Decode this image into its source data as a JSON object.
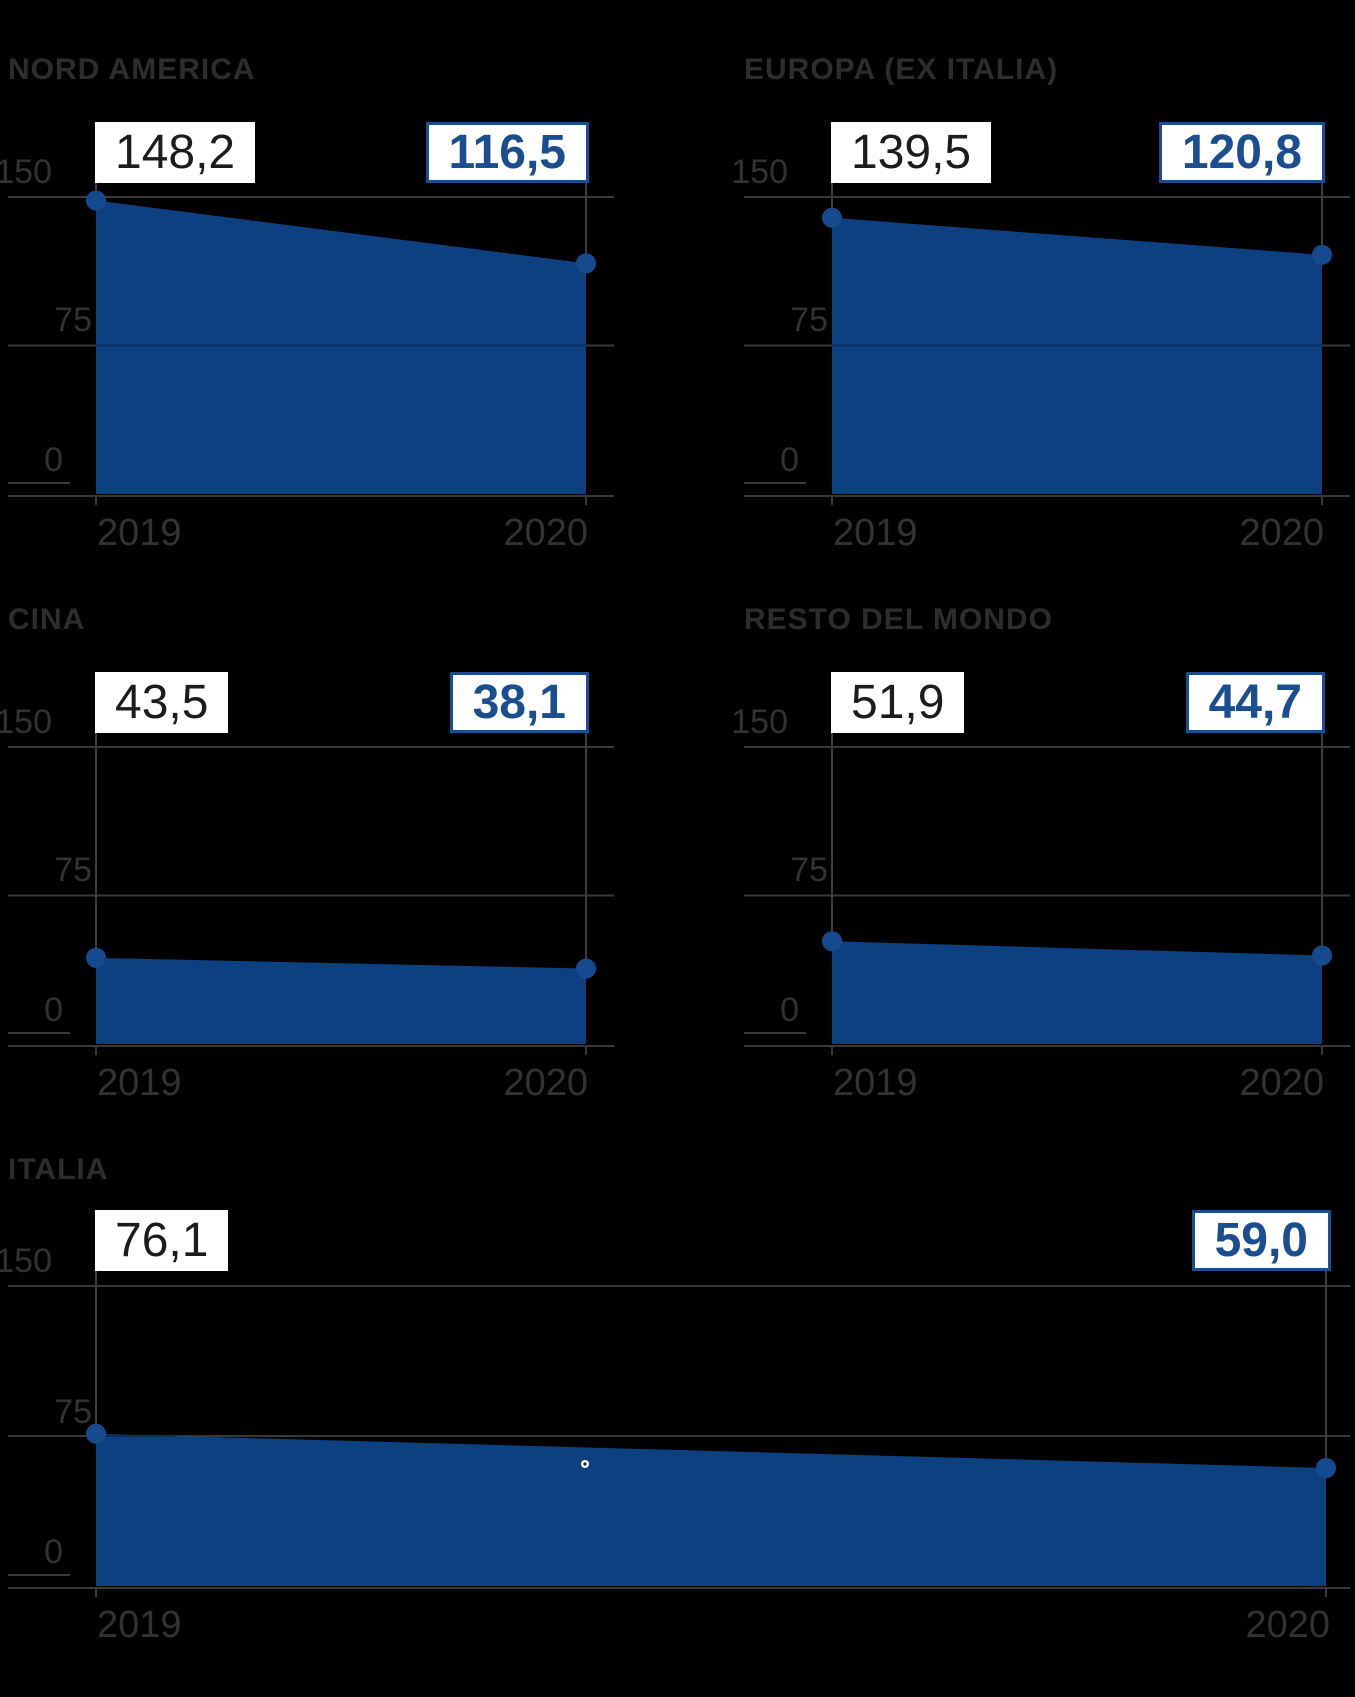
{
  "page": {
    "background": "#000000",
    "description": "Five small-multiple area charts comparing 2019 vs 2020 values by region"
  },
  "colors": {
    "background": "#000000",
    "area_fill": "#0d4080",
    "data_dot": "#164a8f",
    "grid_line": "#383838",
    "grid_line_on_fill": "#0a2e5f",
    "leader_line": "#3c3c3c",
    "title_text": "#2e2d2b",
    "axis_text": "#343231",
    "callout_bg": "#ffffff",
    "callout_prev_text": "#1c1c1a",
    "callout_curr_text": "#1b4e91",
    "callout_curr_border": "#1b4e91",
    "stray_marker_ring": "#ffffff",
    "stray_marker_core": "#0d2747"
  },
  "chart_data": [
    {
      "type": "area",
      "title": "NORD AMERICA",
      "x": [
        "2019",
        "2020"
      ],
      "values": [
        148.2,
        116.5
      ],
      "value_labels": [
        "148,2",
        "116,5"
      ],
      "ylim": [
        0,
        150
      ],
      "yticks": [
        150,
        75,
        0
      ],
      "ytick_labels": [
        "150",
        "75",
        "0"
      ],
      "grid": true,
      "legend": false
    },
    {
      "type": "area",
      "title": "EUROPA (EX ITALIA)",
      "x": [
        "2019",
        "2020"
      ],
      "values": [
        139.5,
        120.8
      ],
      "value_labels": [
        "139,5",
        "120,8"
      ],
      "ylim": [
        0,
        150
      ],
      "yticks": [
        150,
        75,
        0
      ],
      "ytick_labels": [
        "150",
        "75",
        "0"
      ],
      "grid": true,
      "legend": false
    },
    {
      "type": "area",
      "title": "CINA",
      "x": [
        "2019",
        "2020"
      ],
      "values": [
        43.5,
        38.1
      ],
      "value_labels": [
        "43,5",
        "38,1"
      ],
      "ylim": [
        0,
        150
      ],
      "yticks": [
        150,
        75,
        0
      ],
      "ytick_labels": [
        "150",
        "75",
        "0"
      ],
      "grid": true,
      "legend": false
    },
    {
      "type": "area",
      "title": "RESTO DEL MONDO",
      "x": [
        "2019",
        "2020"
      ],
      "values": [
        51.9,
        44.7
      ],
      "value_labels": [
        "51,9",
        "44,7"
      ],
      "ylim": [
        0,
        150
      ],
      "yticks": [
        150,
        75,
        0
      ],
      "ytick_labels": [
        "150",
        "75",
        "0"
      ],
      "grid": true,
      "legend": false
    },
    {
      "type": "area",
      "title": "ITALIA",
      "x": [
        "2019",
        "2020"
      ],
      "values": [
        76.1,
        59.0
      ],
      "value_labels": [
        "76,1",
        "59,0"
      ],
      "ylim": [
        0,
        150
      ],
      "yticks": [
        150,
        75,
        0
      ],
      "ytick_labels": [
        "150",
        "75",
        "0"
      ],
      "grid": true,
      "legend": false
    }
  ]
}
